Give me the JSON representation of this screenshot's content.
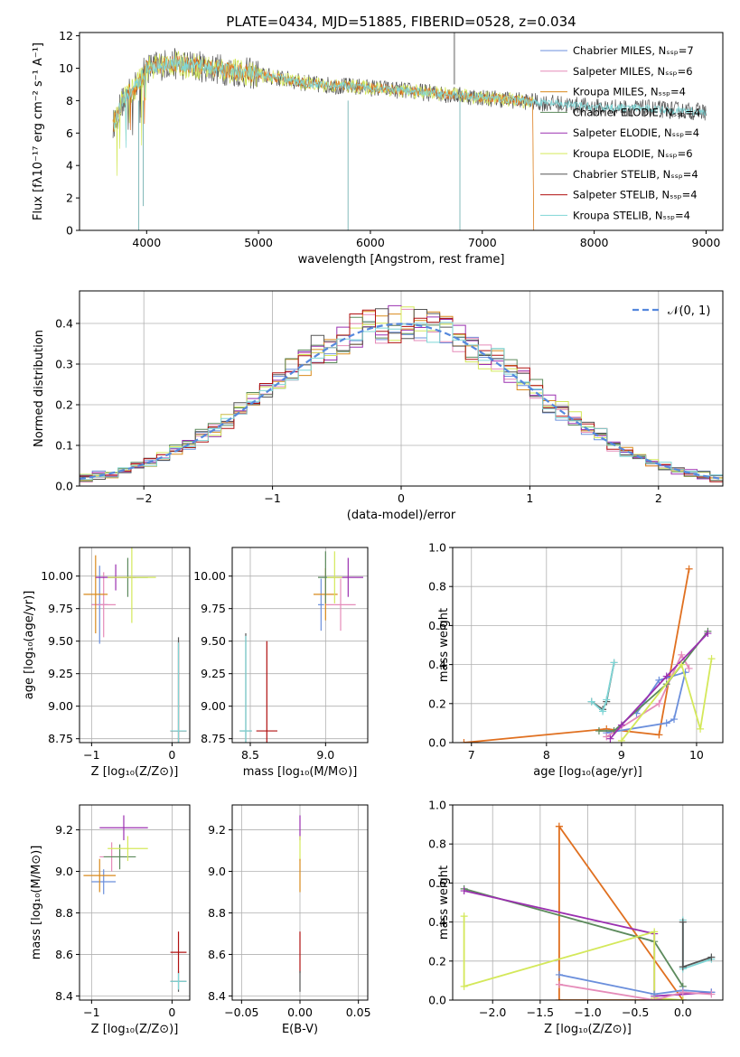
{
  "colors": {
    "chabrier_miles": "#6b8fdc",
    "salpeter_miles": "#e58bb9",
    "kroupa_miles": "#d98a1c",
    "chabrier_elodie": "#5c8a5c",
    "salpeter_elodie": "#9b30b0",
    "kroupa_elodie": "#d4e85a",
    "chabrier_stelib": "#555555",
    "salpeter_stelib": "#b01010",
    "kroupa_stelib": "#7fd6d6",
    "orange_line": "#e07020",
    "gauss": "#5588dd"
  },
  "chart_data": [
    {
      "id": "spectrum",
      "type": "line",
      "title": "PLATE=0434, MJD=51885, FIBERID=0528, z=0.034",
      "xlabel": "wavelength [Angstrom, rest frame]",
      "ylabel": "Flux [fλ10⁻¹⁷ erg cm⁻² s⁻¹ A⁻¹]",
      "xlim": [
        3400,
        9150
      ],
      "ylim": [
        0,
        12.2
      ],
      "xticks": [
        "4000",
        "5000",
        "6000",
        "7000",
        "8000",
        "9000"
      ],
      "yticks": [
        "0",
        "2",
        "4",
        "6",
        "8",
        "10",
        "12"
      ],
      "legend_loc": "top-right",
      "legend": [
        "Chabrier MILES, Nₛₛₚ=7",
        "Salpeter MILES, Nₛₛₚ=6",
        "Kroupa MILES, Nₛₛₚ=4",
        "Chabrier ELODIE, Nₛₛₚ=4",
        "Salpeter ELODIE, Nₛₛₚ=4",
        "Kroupa ELODIE, Nₛₛₚ=6",
        "Chabrier STELIB, Nₛₛₚ=4",
        "Salpeter STELIB, Nₛₛₚ=4",
        "Kroupa STELIB, Nₛₛₚ=4"
      ],
      "continuum": [
        [
          3700,
          6.5
        ],
        [
          3800,
          8.2
        ],
        [
          3900,
          8.8
        ],
        [
          4000,
          10.0
        ],
        [
          4200,
          10.3
        ],
        [
          4500,
          10.1
        ],
        [
          5000,
          9.6
        ],
        [
          5500,
          9.0
        ],
        [
          6000,
          8.8
        ],
        [
          6500,
          8.5
        ],
        [
          7000,
          8.2
        ],
        [
          7500,
          7.9
        ],
        [
          8000,
          7.6
        ],
        [
          8500,
          7.5
        ],
        [
          9000,
          7.3
        ]
      ],
      "grid": false
    },
    {
      "id": "residuals",
      "type": "histogram",
      "xlabel": "(data-model)/error",
      "ylabel": "Normed distribution",
      "xlim": [
        -2.5,
        2.5
      ],
      "ylim": [
        0,
        0.48
      ],
      "xticks": [
        "−2",
        "−1",
        "0",
        "1",
        "2"
      ],
      "yticks": [
        "0.0",
        "0.1",
        "0.2",
        "0.3",
        "0.4"
      ],
      "legend": [
        "𝒩(0, 1)"
      ],
      "legend_loc": "top-right",
      "bin_width": 0.1,
      "gauss_mean": 0,
      "gauss_sigma": 1,
      "grid": true
    },
    {
      "id": "age_vs_Z",
      "type": "scatter",
      "xlabel": "Z [log₁₀(Z/Z⊙)]",
      "ylabel": "age  [log₁₀(age/yr)]",
      "xlim": [
        -1.15,
        0.22
      ],
      "ylim": [
        8.72,
        10.22
      ],
      "xticks": [
        "−1",
        "0"
      ],
      "yticks": [
        "8.75",
        "9.00",
        "9.25",
        "9.50",
        "9.75",
        "10.00"
      ],
      "points": [
        {
          "s": "chabrier_miles",
          "x": -0.9,
          "y": 9.78,
          "ex": 0.1,
          "ey": 0.3
        },
        {
          "s": "salpeter_miles",
          "x": -0.85,
          "y": 9.78,
          "ex": 0.15,
          "ey": 0.25
        },
        {
          "s": "kroupa_miles",
          "x": -0.95,
          "y": 9.86,
          "ex": 0.15,
          "ey": 0.3
        },
        {
          "s": "chabrier_elodie",
          "x": -0.55,
          "y": 9.99,
          "ex": 0.25,
          "ey": 0.15
        },
        {
          "s": "salpeter_elodie",
          "x": -0.7,
          "y": 9.99,
          "ex": 0.25,
          "ey": 0.1
        },
        {
          "s": "kroupa_elodie",
          "x": -0.5,
          "y": 9.99,
          "ex": 0.3,
          "ey": 0.35
        },
        {
          "s": "chabrier_stelib",
          "x": 0.08,
          "y": 8.81,
          "ex": 0.1,
          "ey": 0.72
        },
        {
          "s": "salpeter_stelib",
          "x": 0.08,
          "y": 8.81,
          "ex": 0.1,
          "ey": 0.68
        },
        {
          "s": "kroupa_stelib",
          "x": 0.08,
          "y": 8.81,
          "ex": 0.1,
          "ey": 0.68
        }
      ],
      "grid": true
    },
    {
      "id": "age_vs_mass",
      "type": "scatter",
      "xlabel": "mass [log₁₀(M/M⊙)]",
      "ylabel": "",
      "xlim": [
        8.38,
        9.28
      ],
      "ylim": [
        8.72,
        10.22
      ],
      "xticks": [
        "8.5",
        "9.0"
      ],
      "yticks": [
        "8.75",
        "9.00",
        "9.25",
        "9.50",
        "9.75",
        "10.00"
      ],
      "points": [
        {
          "s": "chabrier_miles",
          "x": 8.97,
          "y": 9.78,
          "ex": 0.02,
          "ey": 0.2
        },
        {
          "s": "salpeter_miles",
          "x": 9.1,
          "y": 9.78,
          "ex": 0.1,
          "ey": 0.2
        },
        {
          "s": "kroupa_miles",
          "x": 9.0,
          "y": 9.86,
          "ex": 0.08,
          "ey": 0.2
        },
        {
          "s": "chabrier_elodie",
          "x": 9.0,
          "y": 9.99,
          "ex": 0.05,
          "ey": 0.2
        },
        {
          "s": "salpeter_elodie",
          "x": 9.15,
          "y": 9.99,
          "ex": 0.1,
          "ey": 0.15
        },
        {
          "s": "kroupa_elodie",
          "x": 9.06,
          "y": 9.99,
          "ex": 0.05,
          "ey": 0.2
        },
        {
          "s": "chabrier_stelib",
          "x": 8.47,
          "y": 8.81,
          "ex": 0.04,
          "ey": 0.75
        },
        {
          "s": "salpeter_stelib",
          "x": 8.61,
          "y": 8.81,
          "ex": 0.07,
          "ey": 0.69
        },
        {
          "s": "kroupa_stelib",
          "x": 8.47,
          "y": 8.81,
          "ex": 0.04,
          "ey": 0.73
        }
      ],
      "grid": true
    },
    {
      "id": "mw_vs_age",
      "type": "line",
      "xlabel": "age  [log₁₀(age/yr)]",
      "ylabel": "mass weight",
      "xlim": [
        6.75,
        10.35
      ],
      "ylim": [
        0,
        1.0
      ],
      "xticks": [
        "7",
        "8",
        "9",
        "10"
      ],
      "yticks": [
        "0.0",
        "0.2",
        "0.4",
        "0.6",
        "0.8",
        "1.0"
      ],
      "series": [
        {
          "s": "kroupa_miles",
          "x": [
            6.9,
            8.8,
            9.5,
            9.9
          ],
          "y": [
            0.0,
            0.07,
            0.04,
            0.89
          ]
        },
        {
          "s": "chabrier_miles",
          "x": [
            8.8,
            9.6,
            9.7,
            9.85,
            9.5,
            9.2
          ],
          "y": [
            0.05,
            0.1,
            0.12,
            0.36,
            0.32,
            0.15
          ]
        },
        {
          "s": "salpeter_miles",
          "x": [
            8.8,
            9.5,
            9.8,
            9.9
          ],
          "y": [
            0.03,
            0.2,
            0.45,
            0.38
          ]
        },
        {
          "s": "chabrier_elodie",
          "x": [
            8.7,
            8.9,
            9.6,
            10.15
          ],
          "y": [
            0.06,
            0.06,
            0.3,
            0.57
          ]
        },
        {
          "s": "salpeter_elodie",
          "x": [
            8.85,
            9.0,
            9.6,
            10.15
          ],
          "y": [
            0.02,
            0.09,
            0.34,
            0.56
          ]
        },
        {
          "s": "kroupa_elodie",
          "x": [
            9.0,
            9.8,
            10.05,
            10.2
          ],
          "y": [
            0.01,
            0.4,
            0.07,
            0.43
          ]
        },
        {
          "s": "chabrier_stelib",
          "x": [
            8.6,
            8.75,
            8.8,
            8.9
          ],
          "y": [
            0.21,
            0.17,
            0.21,
            0.41
          ]
        },
        {
          "s": "kroupa_stelib",
          "x": [
            8.6,
            8.75,
            8.8,
            8.9
          ],
          "y": [
            0.21,
            0.16,
            0.22,
            0.41
          ]
        }
      ],
      "grid": true
    },
    {
      "id": "mass_vs_Z",
      "type": "scatter",
      "xlabel": "Z [log₁₀(Z/Z⊙)]",
      "ylabel": "mass [log₁₀(M/M⊙)]",
      "xlim": [
        -1.15,
        0.22
      ],
      "ylim": [
        8.38,
        9.32
      ],
      "xticks": [
        "−1",
        "0"
      ],
      "yticks": [
        "8.4",
        "8.6",
        "8.8",
        "9.0",
        "9.2"
      ],
      "points": [
        {
          "s": "chabrier_miles",
          "x": -0.85,
          "y": 8.95,
          "ex": 0.15,
          "ey": 0.06
        },
        {
          "s": "salpeter_miles",
          "x": -0.75,
          "y": 9.07,
          "ex": 0.15,
          "ey": 0.07
        },
        {
          "s": "kroupa_miles",
          "x": -0.9,
          "y": 8.98,
          "ex": 0.2,
          "ey": 0.08
        },
        {
          "s": "chabrier_elodie",
          "x": -0.65,
          "y": 9.07,
          "ex": 0.2,
          "ey": 0.06
        },
        {
          "s": "salpeter_elodie",
          "x": -0.6,
          "y": 9.21,
          "ex": 0.3,
          "ey": 0.06
        },
        {
          "s": "kroupa_elodie",
          "x": -0.55,
          "y": 9.11,
          "ex": 0.25,
          "ey": 0.06
        },
        {
          "s": "chabrier_stelib",
          "x": 0.08,
          "y": 8.47,
          "ex": 0.1,
          "ey": 0.05
        },
        {
          "s": "salpeter_stelib",
          "x": 0.08,
          "y": 8.61,
          "ex": 0.1,
          "ey": 0.1
        },
        {
          "s": "kroupa_stelib",
          "x": 0.08,
          "y": 8.47,
          "ex": 0.1,
          "ey": 0.04
        }
      ],
      "grid": true
    },
    {
      "id": "mass_vs_ebv",
      "type": "scatter",
      "xlabel": "E(B-V)",
      "ylabel": "",
      "xlim": [
        -0.058,
        0.058
      ],
      "ylim": [
        8.38,
        9.32
      ],
      "xticks": [
        "−0.05",
        "0.00",
        "0.05"
      ],
      "yticks": [
        "8.4",
        "8.6",
        "8.8",
        "9.0",
        "9.2"
      ],
      "points": [
        {
          "s": "salpeter_elodie",
          "x": 0,
          "y": 9.21,
          "ex": 0,
          "ey": 0.06
        },
        {
          "s": "kroupa_elodie",
          "x": 0,
          "y": 9.11,
          "ex": 0,
          "ey": 0.06
        },
        {
          "s": "kroupa_miles",
          "x": 0,
          "y": 8.98,
          "ex": 0,
          "ey": 0.08
        },
        {
          "s": "salpeter_stelib",
          "x": 0,
          "y": 8.61,
          "ex": 0,
          "ey": 0.1
        },
        {
          "s": "chabrier_stelib",
          "x": 0,
          "y": 8.47,
          "ex": 0,
          "ey": 0.05
        }
      ],
      "grid": true
    },
    {
      "id": "mw_vs_Z",
      "type": "line",
      "xlabel": "Z [log₁₀(Z/Z⊙)]",
      "ylabel": "mass weight",
      "xlim": [
        -2.42,
        0.42
      ],
      "ylim": [
        0,
        1.0
      ],
      "xticks": [
        "−2.0",
        "−1.5",
        "−1.0",
        "−0.5",
        "0.0"
      ],
      "yticks": [
        "0.0",
        "0.2",
        "0.4",
        "0.6",
        "0.8",
        "1.0"
      ],
      "series": [
        {
          "s": "kroupa_miles",
          "x": [
            -1.3,
            -1.3,
            0.0,
            -1.3
          ],
          "y": [
            0.89,
            0.0,
            0.0,
            0.89
          ]
        },
        {
          "s": "chabrier_elodie",
          "x": [
            -2.3,
            -0.3,
            0.0
          ],
          "y": [
            0.57,
            0.3,
            0.07
          ]
        },
        {
          "s": "salpeter_elodie",
          "x": [
            -2.3,
            -0.3,
            -0.3,
            0.3
          ],
          "y": [
            0.56,
            0.34,
            0.02,
            0.04
          ]
        },
        {
          "s": "kroupa_elodie",
          "x": [
            -2.3,
            -2.3,
            -0.3,
            -0.3,
            0.0
          ],
          "y": [
            0.43,
            0.07,
            0.35,
            0.01,
            0.0
          ]
        },
        {
          "s": "chabrier_miles",
          "x": [
            -1.3,
            -0.3,
            0.0,
            0.3
          ],
          "y": [
            0.13,
            0.03,
            0.05,
            0.04
          ]
        },
        {
          "s": "salpeter_miles",
          "x": [
            -1.3,
            -0.3,
            0.0,
            0.3
          ],
          "y": [
            0.08,
            0.0,
            0.04,
            0.03
          ]
        },
        {
          "s": "kroupa_stelib",
          "x": [
            0.0,
            0.0,
            0.3
          ],
          "y": [
            0.41,
            0.16,
            0.21
          ]
        },
        {
          "s": "chabrier_stelib",
          "x": [
            0.0,
            0.0,
            0.3
          ],
          "y": [
            0.4,
            0.17,
            0.22
          ]
        }
      ],
      "grid": true
    }
  ]
}
